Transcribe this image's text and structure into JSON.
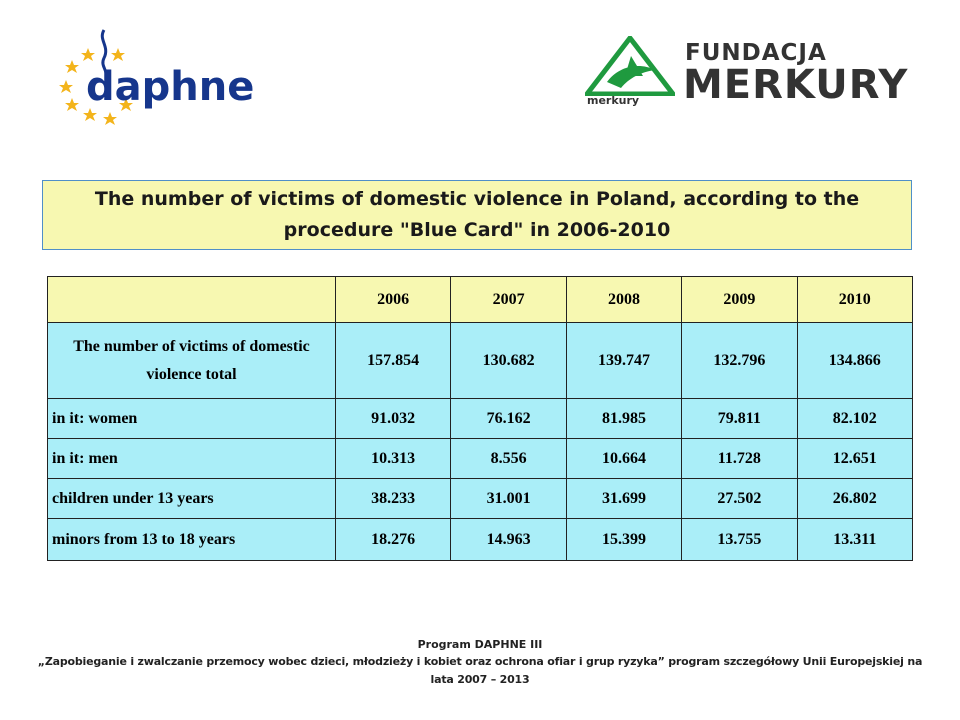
{
  "logos": {
    "daphne": {
      "text": "daphne",
      "icon": "eu-stars-icon",
      "color": "#16368c",
      "star_color": "#f3b41b"
    },
    "merkury": {
      "fundacja": "FUNDACJA",
      "name": "MERKURY",
      "small": "merkury",
      "icon": "merkury-triangle-icon",
      "accent": "#1f9a3f"
    }
  },
  "title": "The number of victims of domestic violence in Poland, according to the procedure \"Blue Card\" in 2006-2010",
  "table": {
    "years": [
      "2006",
      "2007",
      "2008",
      "2009",
      "2010"
    ],
    "rows": [
      {
        "label": "The number of victims of domestic violence total",
        "values": [
          "157.854",
          "130.682",
          "139.747",
          "132.796",
          "134.866"
        ]
      },
      {
        "label": "in it: women",
        "values": [
          "91.032",
          "76.162",
          "81.985",
          "79.811",
          "82.102"
        ]
      },
      {
        "label": "in it: men",
        "values": [
          "10.313",
          "8.556",
          "10.664",
          "11.728",
          "12.651"
        ]
      },
      {
        "label": "children under 13 years",
        "values": [
          "38.233",
          "31.001",
          "31.699",
          "27.502",
          "26.802"
        ]
      },
      {
        "label": "minors from 13 to 18 years",
        "values": [
          "18.276",
          "14.963",
          "15.399",
          "13.755",
          "13.311"
        ]
      }
    ],
    "header_bg": "#f7f8b1",
    "cell_bg": "#aaeef8"
  },
  "footer": {
    "line1": "Program DAPHNE III",
    "line2": "„Zapobieganie i zwalczanie przemocy wobec dzieci, młodzieży i kobiet oraz ochrona ofiar i grup ryzyka” program szczegółowy Unii Europejskiej na lata 2007 – 2013"
  }
}
